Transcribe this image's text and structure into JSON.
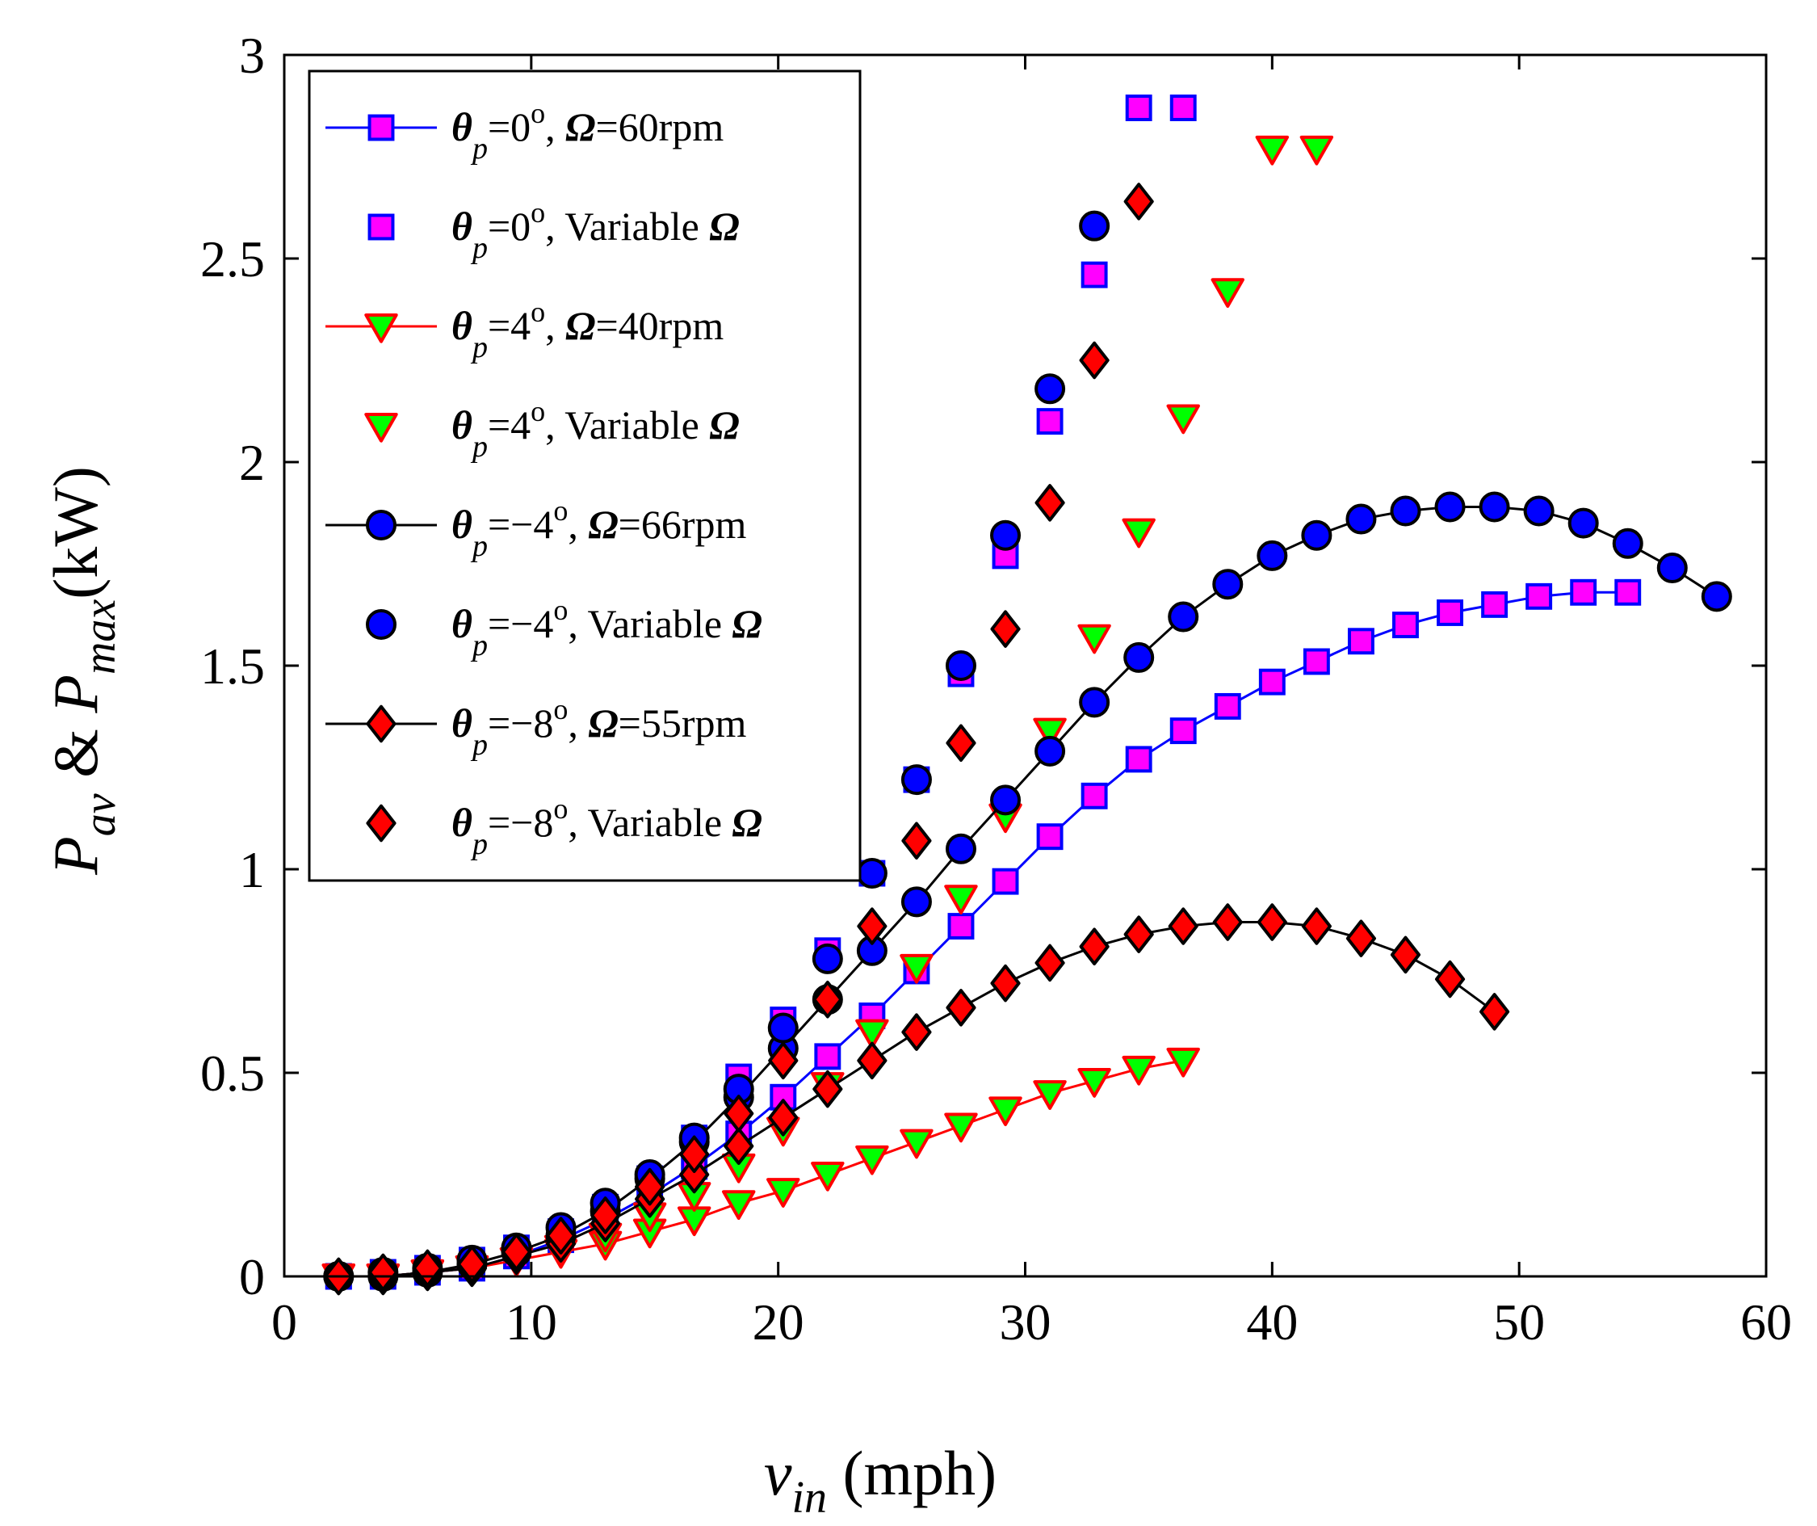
{
  "chart_data": {
    "type": "scatter",
    "title": "",
    "xlabel": {
      "var": "v",
      "sub": "in",
      "unit": " (mph)"
    },
    "ylabel": {
      "p1": "P",
      "s1": "av",
      "amp": " & ",
      "p2": "P",
      "s2": "max",
      "unit": "(kW)"
    },
    "xlim": [
      0,
      60
    ],
    "ylim": [
      0,
      3
    ],
    "xticks": [
      "0",
      "10",
      "20",
      "30",
      "40",
      "50",
      "60"
    ],
    "yticks": [
      "0",
      "0.5",
      "1",
      "1.5",
      "2",
      "2.5",
      "3"
    ],
    "grid": false,
    "legend_position": "top-left",
    "series": [
      {
        "name": "θp=0°, Ω=60rpm",
        "legend": {
          "theta": "θ",
          "sub": "p",
          "angle": "=0",
          "sup": "o",
          "rest": ", ",
          "omega": "Ω",
          "tail": "=60rpm"
        },
        "marker": "square",
        "face": "#ff00ff",
        "edge": "#0000ff",
        "line": "#0000ff",
        "connected": true,
        "x": [
          2.2,
          4.0,
          5.8,
          7.6,
          9.4,
          11.2,
          13.0,
          14.8,
          16.6,
          18.4,
          20.2,
          22.0,
          23.8,
          25.6,
          27.4,
          29.2,
          31.0,
          32.8,
          34.6,
          36.4,
          38.2,
          40.0,
          41.8,
          43.6,
          45.4,
          47.2,
          49.0,
          50.8,
          52.6,
          54.4
        ],
        "y": [
          0.0,
          0.0,
          0.01,
          0.02,
          0.05,
          0.09,
          0.14,
          0.2,
          0.27,
          0.35,
          0.44,
          0.54,
          0.64,
          0.75,
          0.86,
          0.97,
          1.08,
          1.18,
          1.27,
          1.34,
          1.4,
          1.46,
          1.51,
          1.56,
          1.6,
          1.63,
          1.65,
          1.67,
          1.68,
          1.68
        ]
      },
      {
        "name": "θp=0°, Variable Ω",
        "legend": {
          "theta": "θ",
          "sub": "p",
          "angle": "=0",
          "sup": "o",
          "rest": ", Variable ",
          "omega": "Ω",
          "tail": ""
        },
        "marker": "square",
        "face": "#ff00ff",
        "edge": "#0000ff",
        "line": null,
        "connected": false,
        "x": [
          2.2,
          4.0,
          5.8,
          7.6,
          9.4,
          11.2,
          13.0,
          14.8,
          16.6,
          18.4,
          20.2,
          22.0,
          23.8,
          25.6,
          27.4,
          29.2,
          31.0,
          32.8,
          34.6,
          36.4
        ],
        "y": [
          0.0,
          0.01,
          0.02,
          0.04,
          0.07,
          0.11,
          0.17,
          0.24,
          0.34,
          0.49,
          0.63,
          0.8,
          0.99,
          1.22,
          1.48,
          1.77,
          2.1,
          2.46,
          2.87,
          2.87
        ]
      },
      {
        "name": "θp=4°, Ω=40rpm",
        "legend": {
          "theta": "θ",
          "sub": "p",
          "angle": "=4",
          "sup": "o",
          "rest": ", ",
          "omega": "Ω",
          "tail": "=40rpm"
        },
        "marker": "triangle-down",
        "face": "#00ff00",
        "edge": "#ff0000",
        "line": "#ff0000",
        "connected": true,
        "x": [
          2.2,
          4.0,
          5.8,
          7.6,
          9.4,
          11.2,
          13.0,
          14.8,
          16.6,
          18.4,
          20.2,
          22.0,
          23.8,
          25.6,
          27.4,
          29.2,
          31.0,
          32.8,
          34.6,
          36.4
        ],
        "y": [
          0.0,
          0.0,
          0.01,
          0.02,
          0.04,
          0.06,
          0.08,
          0.11,
          0.14,
          0.18,
          0.21,
          0.25,
          0.29,
          0.33,
          0.37,
          0.41,
          0.45,
          0.48,
          0.51,
          0.53
        ]
      },
      {
        "name": "θp=4°, Variable Ω",
        "legend": {
          "theta": "θ",
          "sub": "p",
          "angle": "=4",
          "sup": "o",
          "rest": ", Variable ",
          "omega": "Ω",
          "tail": ""
        },
        "marker": "triangle-down",
        "face": "#00ff00",
        "edge": "#ff0000",
        "line": null,
        "connected": false,
        "x": [
          2.2,
          4.0,
          5.8,
          7.6,
          9.4,
          11.2,
          13.0,
          14.8,
          16.6,
          18.4,
          20.2,
          22.0,
          23.8,
          25.6,
          27.4,
          29.2,
          31.0,
          32.8,
          34.6,
          36.4,
          38.2,
          40.0,
          41.8
        ],
        "y": [
          0.0,
          0.0,
          0.01,
          0.02,
          0.04,
          0.07,
          0.1,
          0.15,
          0.2,
          0.27,
          0.36,
          0.47,
          0.6,
          0.76,
          0.93,
          1.13,
          1.34,
          1.57,
          1.83,
          2.11,
          2.42,
          2.77,
          2.77
        ]
      },
      {
        "name": "θp=−4°, Ω=66rpm",
        "legend": {
          "theta": "θ",
          "sub": "p",
          "angle": "=−4",
          "sup": "o",
          "rest": ",  ",
          "omega": "Ω",
          "tail": "=66rpm"
        },
        "marker": "circle",
        "face": "#0000ff",
        "edge": "#000000",
        "line": "#000000",
        "connected": true,
        "x": [
          2.2,
          4.0,
          5.8,
          7.6,
          9.4,
          11.2,
          13.0,
          14.8,
          16.6,
          18.4,
          20.2,
          22.0,
          23.8,
          25.6,
          27.4,
          29.2,
          31.0,
          32.8,
          34.6,
          36.4,
          38.2,
          40.0,
          41.8,
          43.6,
          45.4,
          47.2,
          49.0,
          50.8,
          52.6,
          54.4,
          56.2,
          58.0
        ],
        "y": [
          0.0,
          0.0,
          0.01,
          0.03,
          0.06,
          0.1,
          0.16,
          0.24,
          0.33,
          0.44,
          0.56,
          0.68,
          0.8,
          0.92,
          1.05,
          1.17,
          1.29,
          1.41,
          1.52,
          1.62,
          1.7,
          1.77,
          1.82,
          1.86,
          1.88,
          1.89,
          1.89,
          1.88,
          1.85,
          1.8,
          1.74,
          1.67
        ]
      },
      {
        "name": "θp=−4°, Variable Ω",
        "legend": {
          "theta": "θ",
          "sub": "p",
          "angle": "=−4",
          "sup": "o",
          "rest": ", Variable ",
          "omega": "Ω",
          "tail": ""
        },
        "marker": "circle",
        "face": "#0000ff",
        "edge": "#000000",
        "line": null,
        "connected": false,
        "x": [
          2.2,
          4.0,
          5.8,
          7.6,
          9.4,
          11.2,
          13.0,
          14.8,
          16.6,
          18.4,
          20.2,
          22.0,
          23.8,
          25.6,
          27.4,
          29.2,
          31.0,
          32.8
        ],
        "y": [
          0.0,
          0.01,
          0.02,
          0.04,
          0.07,
          0.12,
          0.18,
          0.25,
          0.34,
          0.46,
          0.61,
          0.78,
          0.99,
          1.22,
          1.5,
          1.82,
          2.18,
          2.58
        ]
      },
      {
        "name": "θp=−8°, Ω=55rpm",
        "legend": {
          "theta": "θ",
          "sub": "p",
          "angle": "=−8",
          "sup": "o",
          "rest": ", ",
          "omega": "Ω",
          "tail": "=55rpm"
        },
        "marker": "diamond",
        "face": "#ff0000",
        "edge": "#000000",
        "line": "#000000",
        "connected": true,
        "x": [
          2.2,
          4.0,
          5.8,
          7.6,
          9.4,
          11.2,
          13.0,
          14.8,
          16.6,
          18.4,
          20.2,
          22.0,
          23.8,
          25.6,
          27.4,
          29.2,
          31.0,
          32.8,
          34.6,
          36.4,
          38.2,
          40.0,
          41.8,
          43.6,
          45.4,
          47.2,
          49.0
        ],
        "y": [
          0.0,
          0.0,
          0.01,
          0.02,
          0.05,
          0.08,
          0.13,
          0.19,
          0.25,
          0.32,
          0.39,
          0.46,
          0.53,
          0.6,
          0.66,
          0.72,
          0.77,
          0.81,
          0.84,
          0.86,
          0.87,
          0.87,
          0.86,
          0.83,
          0.79,
          0.73,
          0.65
        ]
      },
      {
        "name": "θp=−8°, Variable Ω",
        "legend": {
          "theta": "θ",
          "sub": "p",
          "angle": "=−8",
          "sup": "o",
          "rest": ", Variable ",
          "omega": "Ω",
          "tail": ""
        },
        "marker": "diamond",
        "face": "#ff0000",
        "edge": "#000000",
        "line": null,
        "connected": false,
        "x": [
          2.2,
          4.0,
          5.8,
          7.6,
          9.4,
          11.2,
          13.0,
          14.8,
          16.6,
          18.4,
          20.2,
          22.0,
          23.8,
          25.6,
          27.4,
          29.2,
          31.0,
          32.8,
          34.6
        ],
        "y": [
          0.0,
          0.01,
          0.02,
          0.03,
          0.06,
          0.1,
          0.15,
          0.22,
          0.3,
          0.4,
          0.53,
          0.68,
          0.86,
          1.07,
          1.31,
          1.59,
          1.9,
          2.25,
          2.64
        ]
      }
    ]
  }
}
